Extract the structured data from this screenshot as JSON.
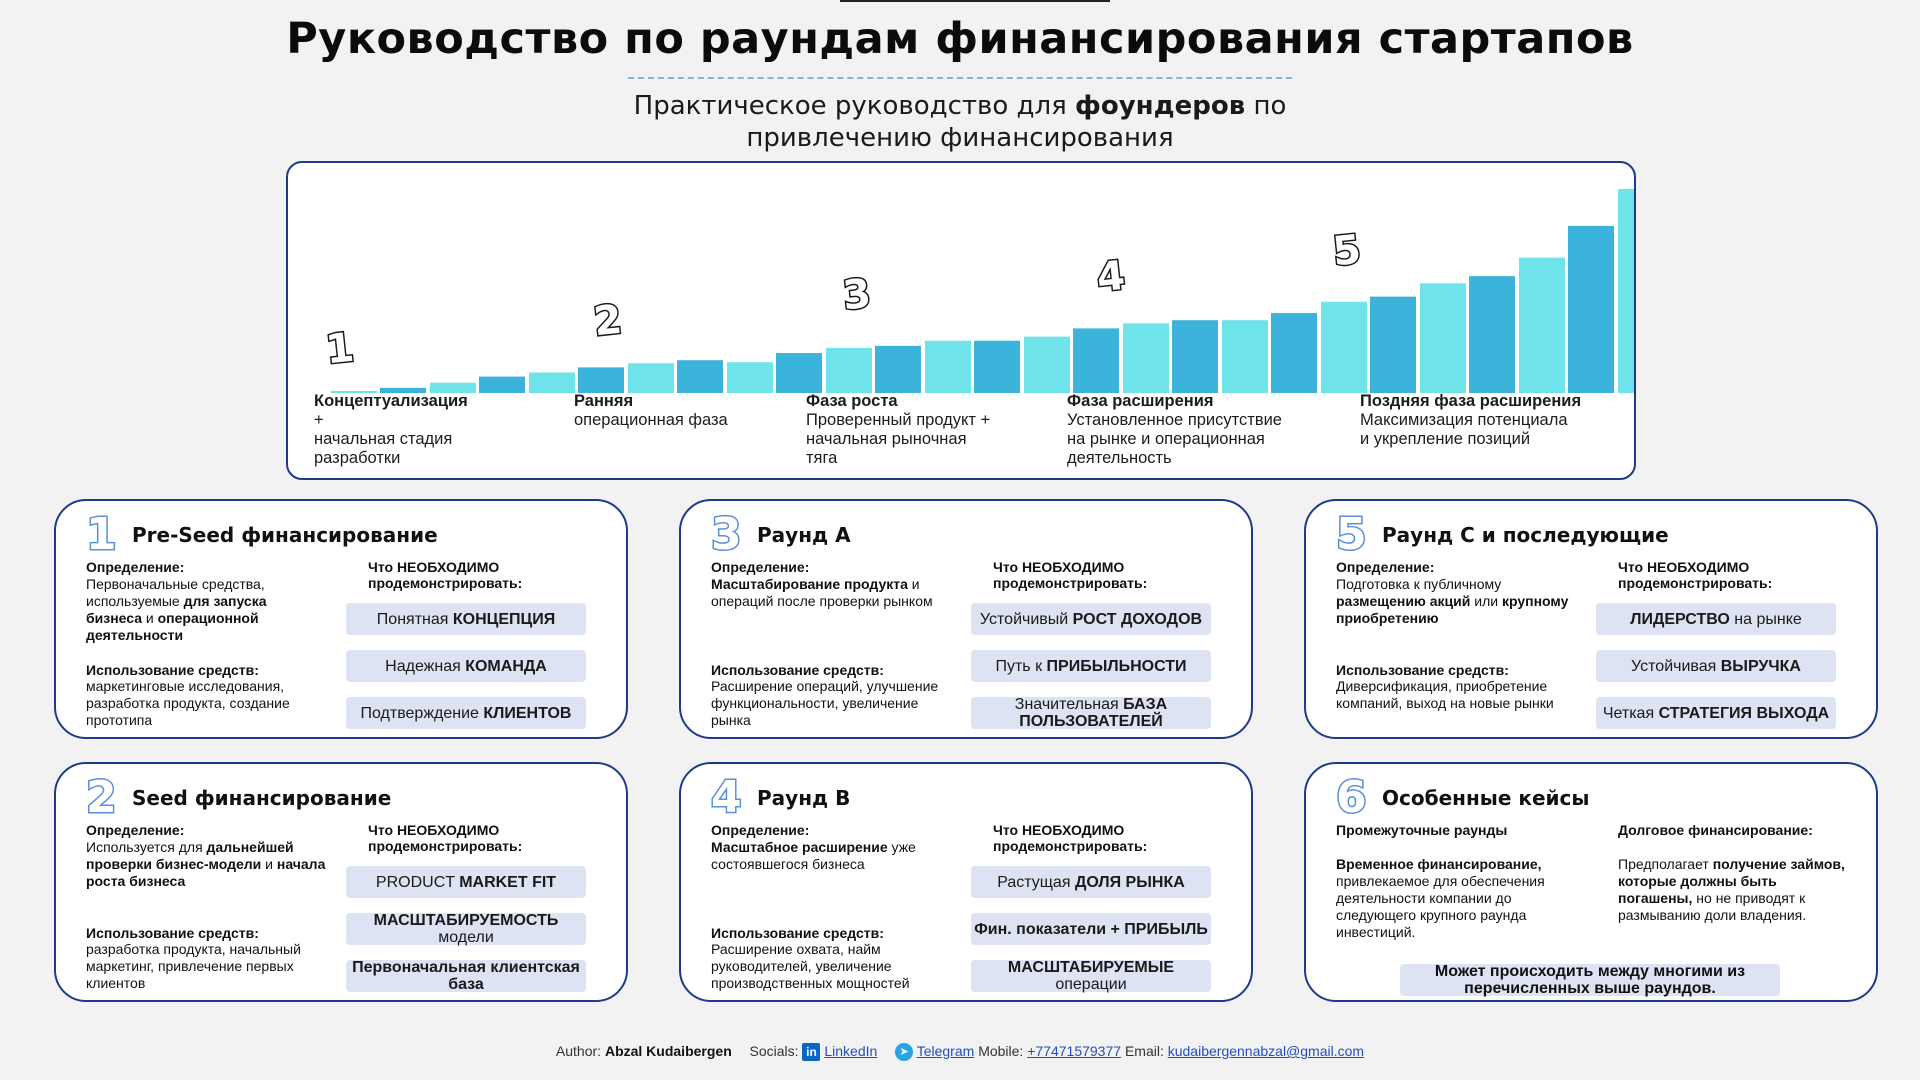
{
  "header": {
    "title": "Руководство по раундам финансирования стартапов",
    "subtitle_pre": "Практическое руководство для ",
    "subtitle_bold": "фоундеров",
    "subtitle_post": " по привлечению финансирования"
  },
  "stages": [
    {
      "num": "1",
      "title": "Концептуализация",
      "desc": "                +\nначальная стадия\nразработки"
    },
    {
      "num": "2",
      "title": "Ранняя",
      "desc": "операционная фаза"
    },
    {
      "num": "3",
      "title": "Фаза роста",
      "desc": "Проверенный продукт +\nначальная рыночная\nтяга"
    },
    {
      "num": "4",
      "title": "Фаза расширения",
      "desc": "Установленное присутствие\nна рынке и операционная\nдеятельность"
    },
    {
      "num": "5",
      "title": "Поздняя фаза расширения",
      "desc": "Максимизация потенциала\nи укрепление позиций"
    }
  ],
  "chart_data": {
    "type": "bar",
    "bar_values": [
      2,
      5,
      10,
      16,
      20,
      25,
      29,
      32,
      30,
      39,
      44,
      46,
      51,
      51,
      55,
      63,
      68,
      71,
      71,
      78,
      89,
      94,
      107,
      114,
      132,
      163,
      199
    ],
    "bar_colors": [
      "#6ee3ea",
      "#3bb3da"
    ],
    "colors": {
      "light": "#6ee3ea",
      "dark": "#3bb3da"
    }
  },
  "cards": {
    "preseed": {
      "num": "1",
      "title": "Pre-Seed финансирование",
      "def_label": "Определение:",
      "def_text": "Первоначальные средства, используемые ",
      "def_bold": "для запуска бизнеса",
      "def_text2": " и ",
      "def_bold2": "операционной деятельности",
      "use_label": "Использование средств:",
      "use_text": "маркетинговые исследования, разработка продукта, создание прототипа",
      "need_label": "Что НЕОБХОДИМО\nпродемонстрировать:",
      "pills": [
        {
          "normal": "Понятная ",
          "bold": "КОНЦЕПЦИЯ",
          "after": ""
        },
        {
          "normal": "Надежная ",
          "bold": "КОМАНДА",
          "after": ""
        },
        {
          "normal": "Подтверждение ",
          "bold": "КЛИЕНТОВ",
          "after": ""
        }
      ]
    },
    "seed": {
      "num": "2",
      "title": "Seed финансирование",
      "def_label": "Определение:",
      "def_text": "Используется для ",
      "def_bold": "дальнейшей проверки бизнес-модели",
      "def_text2": " и ",
      "def_bold2": "начала роста бизнеса",
      "use_label": "Использование средств:",
      "use_text": "разработка продукта, начальный маркетинг, привлечение первых клиентов",
      "need_label": "Что НЕОБХОДИМО\nпродемонстрировать:",
      "pills": [
        {
          "normal": "PRODUCT ",
          "bold": "MARKET FIT",
          "after": ""
        },
        {
          "normal": "",
          "bold": "МАСШТАБИРУЕМОСТЬ",
          "after": " модели"
        },
        {
          "normal": "",
          "bold": "Первоначальная клиентская база",
          "after": ""
        }
      ]
    },
    "roundA": {
      "num": "3",
      "title": "Раунд А",
      "def_label": "Определение:",
      "def_text": "",
      "def_bold": "Масштабирование продукта",
      "def_text2": " и операций после проверки рынком",
      "def_bold2": "",
      "use_label": "Использование средств:",
      "use_text": "Расширение операций, улучшение функциональности, увеличение рынка",
      "need_label": "Что НЕОБХОДИМО\nпродемонстрировать:",
      "pills": [
        {
          "normal": "Устойчивый ",
          "bold": "РОСТ ДОХОДОВ",
          "after": ""
        },
        {
          "normal": "Путь к ",
          "bold": "ПРИБЫЛЬНОСТИ",
          "after": ""
        },
        {
          "normal": "Значительная ",
          "bold": "БАЗА ПОЛЬЗОВАТЕЛЕЙ",
          "after": ""
        }
      ]
    },
    "roundB": {
      "num": "4",
      "title": "Раунд В",
      "def_label": "Определение:",
      "def_text": "",
      "def_bold": "Масштабное расширение",
      "def_text2": " уже состоявшегося бизнеса",
      "def_bold2": "",
      "use_label": "Использование средств:",
      "use_text": "Расширение охвата, найм руководителей, увеличение производственных мощностей",
      "need_label": "Что НЕОБХОДИМО\nпродемонстрировать:",
      "pills": [
        {
          "normal": "Растущая ",
          "bold": "ДОЛЯ РЫНКА",
          "after": ""
        },
        {
          "normal": "",
          "bold": "Фин. показатели + ПРИБЫЛЬ",
          "after": ""
        },
        {
          "normal": "",
          "bold": "МАСШТАБИРУЕМЫЕ",
          "after": " операции"
        }
      ]
    },
    "roundC": {
      "num": "5",
      "title": "Раунд С и последующие",
      "def_label": "Определение:",
      "def_text": "Подготовка к публичному ",
      "def_bold": "размещению акций",
      "def_text2": " или ",
      "def_bold2": "крупному приобретению",
      "use_label": "Использование средств:",
      "use_text": "Диверсификация, приобретение компаний, выход на новые рынки",
      "need_label": "Что НЕОБХОДИМО\nпродемонстрировать:",
      "pills": [
        {
          "normal": "",
          "bold": "ЛИДЕРСТВО",
          "after": " на рынке"
        },
        {
          "normal": "Устойчивая ",
          "bold": "ВЫРУЧКА",
          "after": ""
        },
        {
          "normal": "Четкая ",
          "bold": "СТРАТЕГИЯ ВЫХОДА",
          "after": ""
        }
      ]
    },
    "special": {
      "num": "6",
      "title": "Особенные кейсы",
      "left_sub": "Промежуточные раунды",
      "left_bold": "Временное финансирование,",
      "left_text": " привлекаемое для обеспечения деятельности компании до следующего крупного раунда инвестиций.",
      "right_sub": "Долговое финансирование:",
      "right_text": "Предполагает ",
      "right_bold": "получение займов, которые должны быть погашены,",
      "right_text2": " но не приводят к размыванию доли владения.",
      "note": "Может происходить между многими из перечисленных выше раундов."
    }
  },
  "footer": {
    "author_label": "Author:",
    "author": "Abzal Kudaibergen",
    "socials_label": "Socials:",
    "linkedin": "LinkedIn",
    "telegram": "Telegram",
    "mobile_label": "Mobile:",
    "mobile": "+77471579377",
    "email_label": "Email:",
    "email": "kudaibergennabzal@gmail.com",
    "linkedin_icon": "linkedin-icon",
    "telegram_icon": "telegram-icon"
  }
}
